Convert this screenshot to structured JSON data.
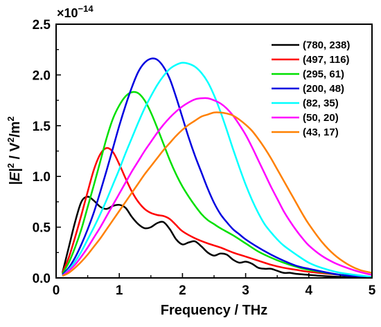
{
  "chart_data": {
    "type": "line",
    "xlabel": "Frequency / THz",
    "ylabel_main": "|E|",
    "ylabel_sup1": "2",
    "ylabel_mid": " / V",
    "ylabel_sup2": "2",
    "ylabel_end": "/m",
    "ylabel_sup3": "2",
    "y_multiplier": "×10",
    "y_multiplier_exp": "−14",
    "xlim": [
      0,
      5
    ],
    "ylim": [
      0,
      2.5
    ],
    "xticks": [
      0,
      1,
      2,
      3,
      4,
      5
    ],
    "xtick_labels": [
      "0",
      "1",
      "2",
      "3",
      "4",
      "5"
    ],
    "yticks": [
      0,
      0.5,
      1.0,
      1.5,
      2.0,
      2.5
    ],
    "ytick_labels": [
      "0.0",
      "0.5",
      "1.0",
      "1.5",
      "2.0",
      "2.5"
    ],
    "grid": false,
    "legend_position": "top-right",
    "series": [
      {
        "name": "(780, 238)",
        "color": "#000000",
        "points": [
          [
            0.1,
            0.05
          ],
          [
            0.2,
            0.3
          ],
          [
            0.3,
            0.55
          ],
          [
            0.4,
            0.75
          ],
          [
            0.5,
            0.8
          ],
          [
            0.6,
            0.76
          ],
          [
            0.7,
            0.7
          ],
          [
            0.8,
            0.68
          ],
          [
            0.9,
            0.71
          ],
          [
            1.0,
            0.72
          ],
          [
            1.1,
            0.69
          ],
          [
            1.2,
            0.6
          ],
          [
            1.3,
            0.53
          ],
          [
            1.4,
            0.49
          ],
          [
            1.5,
            0.5
          ],
          [
            1.6,
            0.54
          ],
          [
            1.7,
            0.55
          ],
          [
            1.8,
            0.48
          ],
          [
            1.9,
            0.38
          ],
          [
            2.0,
            0.33
          ],
          [
            2.1,
            0.35
          ],
          [
            2.2,
            0.36
          ],
          [
            2.3,
            0.31
          ],
          [
            2.4,
            0.25
          ],
          [
            2.5,
            0.22
          ],
          [
            2.6,
            0.24
          ],
          [
            2.7,
            0.23
          ],
          [
            2.8,
            0.18
          ],
          [
            2.9,
            0.15
          ],
          [
            3.0,
            0.16
          ],
          [
            3.1,
            0.14
          ],
          [
            3.2,
            0.1
          ],
          [
            3.3,
            0.09
          ],
          [
            3.4,
            0.09
          ],
          [
            3.5,
            0.07
          ],
          [
            3.6,
            0.05
          ],
          [
            3.7,
            0.05
          ],
          [
            3.8,
            0.04
          ],
          [
            4.0,
            0.03
          ],
          [
            4.2,
            0.02
          ],
          [
            4.5,
            0.01
          ],
          [
            5.0,
            0.005
          ]
        ]
      },
      {
        "name": "(497, 116)",
        "color": "#ff0000",
        "points": [
          [
            0.1,
            0.05
          ],
          [
            0.2,
            0.2
          ],
          [
            0.3,
            0.4
          ],
          [
            0.4,
            0.62
          ],
          [
            0.5,
            0.85
          ],
          [
            0.6,
            1.07
          ],
          [
            0.7,
            1.22
          ],
          [
            0.8,
            1.28
          ],
          [
            0.9,
            1.24
          ],
          [
            1.0,
            1.12
          ],
          [
            1.1,
            0.98
          ],
          [
            1.2,
            0.85
          ],
          [
            1.3,
            0.75
          ],
          [
            1.4,
            0.68
          ],
          [
            1.5,
            0.64
          ],
          [
            1.6,
            0.62
          ],
          [
            1.7,
            0.61
          ],
          [
            1.8,
            0.58
          ],
          [
            1.9,
            0.52
          ],
          [
            2.0,
            0.46
          ],
          [
            2.2,
            0.39
          ],
          [
            2.4,
            0.34
          ],
          [
            2.6,
            0.3
          ],
          [
            2.8,
            0.25
          ],
          [
            3.0,
            0.21
          ],
          [
            3.2,
            0.17
          ],
          [
            3.4,
            0.13
          ],
          [
            3.6,
            0.1
          ],
          [
            3.8,
            0.08
          ],
          [
            4.0,
            0.06
          ],
          [
            4.5,
            0.03
          ],
          [
            5.0,
            0.01
          ]
        ]
      },
      {
        "name": "(295, 61)",
        "color": "#00e000",
        "points": [
          [
            0.1,
            0.04
          ],
          [
            0.2,
            0.15
          ],
          [
            0.3,
            0.3
          ],
          [
            0.4,
            0.48
          ],
          [
            0.5,
            0.7
          ],
          [
            0.6,
            0.92
          ],
          [
            0.7,
            1.15
          ],
          [
            0.8,
            1.38
          ],
          [
            0.9,
            1.57
          ],
          [
            1.0,
            1.7
          ],
          [
            1.1,
            1.79
          ],
          [
            1.2,
            1.83
          ],
          [
            1.3,
            1.82
          ],
          [
            1.4,
            1.75
          ],
          [
            1.5,
            1.63
          ],
          [
            1.6,
            1.48
          ],
          [
            1.7,
            1.32
          ],
          [
            1.8,
            1.16
          ],
          [
            1.9,
            1.02
          ],
          [
            2.0,
            0.9
          ],
          [
            2.1,
            0.8
          ],
          [
            2.2,
            0.71
          ],
          [
            2.3,
            0.63
          ],
          [
            2.4,
            0.57
          ],
          [
            2.5,
            0.53
          ],
          [
            2.6,
            0.49
          ],
          [
            2.8,
            0.42
          ],
          [
            3.0,
            0.34
          ],
          [
            3.2,
            0.26
          ],
          [
            3.4,
            0.2
          ],
          [
            3.6,
            0.15
          ],
          [
            3.8,
            0.11
          ],
          [
            4.0,
            0.08
          ],
          [
            4.5,
            0.03
          ],
          [
            5.0,
            0.01
          ]
        ]
      },
      {
        "name": "(200, 48)",
        "color": "#0000e0",
        "points": [
          [
            0.1,
            0.03
          ],
          [
            0.2,
            0.1
          ],
          [
            0.3,
            0.2
          ],
          [
            0.4,
            0.33
          ],
          [
            0.5,
            0.48
          ],
          [
            0.6,
            0.65
          ],
          [
            0.7,
            0.85
          ],
          [
            0.8,
            1.06
          ],
          [
            0.9,
            1.28
          ],
          [
            1.0,
            1.5
          ],
          [
            1.1,
            1.7
          ],
          [
            1.2,
            1.88
          ],
          [
            1.3,
            2.03
          ],
          [
            1.4,
            2.12
          ],
          [
            1.5,
            2.16
          ],
          [
            1.6,
            2.15
          ],
          [
            1.7,
            2.08
          ],
          [
            1.8,
            1.96
          ],
          [
            1.9,
            1.78
          ],
          [
            2.0,
            1.58
          ],
          [
            2.1,
            1.38
          ],
          [
            2.2,
            1.2
          ],
          [
            2.3,
            1.04
          ],
          [
            2.4,
            0.88
          ],
          [
            2.5,
            0.74
          ],
          [
            2.6,
            0.63
          ],
          [
            2.7,
            0.55
          ],
          [
            2.8,
            0.48
          ],
          [
            2.9,
            0.43
          ],
          [
            3.0,
            0.38
          ],
          [
            3.2,
            0.3
          ],
          [
            3.4,
            0.23
          ],
          [
            3.6,
            0.17
          ],
          [
            3.8,
            0.12
          ],
          [
            4.0,
            0.09
          ],
          [
            4.5,
            0.03
          ],
          [
            5.0,
            0.01
          ]
        ]
      },
      {
        "name": "(82, 35)",
        "color": "#00ffff",
        "points": [
          [
            0.1,
            0.02
          ],
          [
            0.2,
            0.08
          ],
          [
            0.3,
            0.16
          ],
          [
            0.4,
            0.26
          ],
          [
            0.5,
            0.38
          ],
          [
            0.6,
            0.5
          ],
          [
            0.7,
            0.63
          ],
          [
            0.8,
            0.77
          ],
          [
            0.9,
            0.92
          ],
          [
            1.0,
            1.07
          ],
          [
            1.1,
            1.23
          ],
          [
            1.2,
            1.38
          ],
          [
            1.3,
            1.53
          ],
          [
            1.4,
            1.67
          ],
          [
            1.5,
            1.79
          ],
          [
            1.6,
            1.9
          ],
          [
            1.7,
            1.99
          ],
          [
            1.8,
            2.06
          ],
          [
            1.9,
            2.1
          ],
          [
            2.0,
            2.12
          ],
          [
            2.1,
            2.11
          ],
          [
            2.2,
            2.08
          ],
          [
            2.3,
            2.02
          ],
          [
            2.4,
            1.93
          ],
          [
            2.5,
            1.8
          ],
          [
            2.6,
            1.64
          ],
          [
            2.7,
            1.46
          ],
          [
            2.8,
            1.27
          ],
          [
            2.9,
            1.09
          ],
          [
            3.0,
            0.92
          ],
          [
            3.1,
            0.77
          ],
          [
            3.2,
            0.64
          ],
          [
            3.3,
            0.53
          ],
          [
            3.4,
            0.45
          ],
          [
            3.5,
            0.38
          ],
          [
            3.6,
            0.32
          ],
          [
            3.8,
            0.23
          ],
          [
            4.0,
            0.15
          ],
          [
            4.2,
            0.1
          ],
          [
            4.5,
            0.05
          ],
          [
            5.0,
            0.01
          ]
        ]
      },
      {
        "name": "(50, 20)",
        "color": "#ff00ff",
        "points": [
          [
            0.1,
            0.02
          ],
          [
            0.2,
            0.07
          ],
          [
            0.3,
            0.13
          ],
          [
            0.4,
            0.21
          ],
          [
            0.5,
            0.3
          ],
          [
            0.6,
            0.4
          ],
          [
            0.7,
            0.5
          ],
          [
            0.8,
            0.61
          ],
          [
            0.9,
            0.72
          ],
          [
            1.0,
            0.83
          ],
          [
            1.1,
            0.94
          ],
          [
            1.2,
            1.05
          ],
          [
            1.3,
            1.15
          ],
          [
            1.4,
            1.25
          ],
          [
            1.5,
            1.34
          ],
          [
            1.6,
            1.43
          ],
          [
            1.7,
            1.51
          ],
          [
            1.8,
            1.58
          ],
          [
            1.9,
            1.64
          ],
          [
            2.0,
            1.69
          ],
          [
            2.1,
            1.73
          ],
          [
            2.2,
            1.76
          ],
          [
            2.3,
            1.77
          ],
          [
            2.4,
            1.77
          ],
          [
            2.5,
            1.75
          ],
          [
            2.6,
            1.72
          ],
          [
            2.7,
            1.67
          ],
          [
            2.8,
            1.6
          ],
          [
            2.9,
            1.51
          ],
          [
            3.0,
            1.41
          ],
          [
            3.1,
            1.29
          ],
          [
            3.2,
            1.16
          ],
          [
            3.3,
            1.03
          ],
          [
            3.4,
            0.9
          ],
          [
            3.5,
            0.78
          ],
          [
            3.6,
            0.66
          ],
          [
            3.7,
            0.56
          ],
          [
            3.8,
            0.47
          ],
          [
            3.9,
            0.39
          ],
          [
            4.0,
            0.32
          ],
          [
            4.2,
            0.22
          ],
          [
            4.4,
            0.15
          ],
          [
            4.6,
            0.1
          ],
          [
            4.8,
            0.06
          ],
          [
            5.0,
            0.03
          ]
        ]
      },
      {
        "name": "(43, 17)",
        "color": "#ff8000",
        "points": [
          [
            0.1,
            0.02
          ],
          [
            0.2,
            0.05
          ],
          [
            0.3,
            0.1
          ],
          [
            0.4,
            0.16
          ],
          [
            0.5,
            0.23
          ],
          [
            0.6,
            0.31
          ],
          [
            0.7,
            0.39
          ],
          [
            0.8,
            0.48
          ],
          [
            0.9,
            0.57
          ],
          [
            1.0,
            0.66
          ],
          [
            1.1,
            0.75
          ],
          [
            1.2,
            0.84
          ],
          [
            1.3,
            0.93
          ],
          [
            1.4,
            1.02
          ],
          [
            1.5,
            1.1
          ],
          [
            1.6,
            1.18
          ],
          [
            1.7,
            1.26
          ],
          [
            1.8,
            1.33
          ],
          [
            1.9,
            1.4
          ],
          [
            2.0,
            1.46
          ],
          [
            2.1,
            1.51
          ],
          [
            2.2,
            1.55
          ],
          [
            2.3,
            1.59
          ],
          [
            2.4,
            1.61
          ],
          [
            2.5,
            1.63
          ],
          [
            2.6,
            1.63
          ],
          [
            2.7,
            1.62
          ],
          [
            2.8,
            1.6
          ],
          [
            2.9,
            1.56
          ],
          [
            3.0,
            1.51
          ],
          [
            3.1,
            1.45
          ],
          [
            3.2,
            1.37
          ],
          [
            3.3,
            1.28
          ],
          [
            3.4,
            1.18
          ],
          [
            3.5,
            1.07
          ],
          [
            3.6,
            0.96
          ],
          [
            3.7,
            0.85
          ],
          [
            3.8,
            0.74
          ],
          [
            3.9,
            0.63
          ],
          [
            4.0,
            0.53
          ],
          [
            4.2,
            0.36
          ],
          [
            4.4,
            0.23
          ],
          [
            4.6,
            0.14
          ],
          [
            4.8,
            0.08
          ],
          [
            5.0,
            0.05
          ]
        ]
      }
    ]
  }
}
